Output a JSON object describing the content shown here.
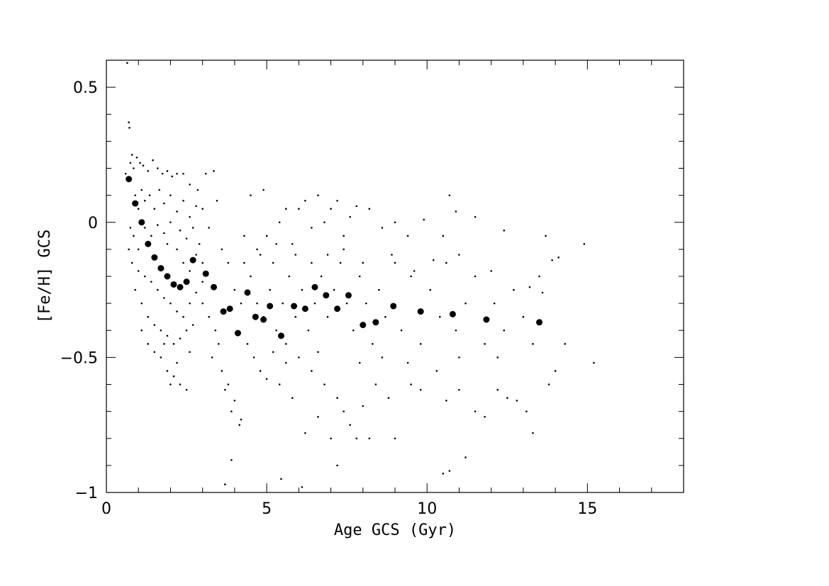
{
  "chart_data": {
    "type": "scatter",
    "xlabel": "Age GCS (Gyr)",
    "ylabel": "[Fe/H] GCS",
    "xlim": [
      0,
      18
    ],
    "ylim": [
      -1,
      0.6
    ],
    "x_ticks": [
      0,
      5,
      10,
      15
    ],
    "x_tick_labels": [
      "0",
      "5",
      "10",
      "15"
    ],
    "y_ticks": [
      -1,
      -0.5,
      0,
      0.5
    ],
    "y_tick_labels": [
      "−1",
      "−0.5",
      "0",
      "0.5"
    ],
    "grid": false,
    "legend": "none",
    "colors": {
      "points": "#000000",
      "axes": "#000000",
      "background": "#ffffff"
    },
    "series": [
      {
        "role": "binned-means",
        "points": [
          [
            0.7,
            0.16
          ],
          [
            0.9,
            0.07
          ],
          [
            1.1,
            0.0
          ],
          [
            1.3,
            -0.08
          ],
          [
            1.5,
            -0.13
          ],
          [
            1.7,
            -0.17
          ],
          [
            1.9,
            -0.2
          ],
          [
            2.1,
            -0.23
          ],
          [
            2.3,
            -0.24
          ],
          [
            2.5,
            -0.22
          ],
          [
            2.7,
            -0.14
          ],
          [
            3.1,
            -0.19
          ],
          [
            3.35,
            -0.24
          ],
          [
            3.65,
            -0.33
          ],
          [
            3.85,
            -0.32
          ],
          [
            4.1,
            -0.41
          ],
          [
            4.4,
            -0.26
          ],
          [
            4.65,
            -0.35
          ],
          [
            4.9,
            -0.36
          ],
          [
            5.1,
            -0.31
          ],
          [
            5.45,
            -0.42
          ],
          [
            5.85,
            -0.31
          ],
          [
            6.2,
            -0.32
          ],
          [
            6.5,
            -0.24
          ],
          [
            6.85,
            -0.27
          ],
          [
            7.2,
            -0.32
          ],
          [
            7.55,
            -0.27
          ],
          [
            8.0,
            -0.38
          ],
          [
            8.4,
            -0.37
          ],
          [
            8.95,
            -0.31
          ],
          [
            9.8,
            -0.33
          ],
          [
            10.8,
            -0.34
          ],
          [
            11.85,
            -0.36
          ],
          [
            13.5,
            -0.37
          ]
        ]
      },
      {
        "role": "individual-stars",
        "points": [
          [
            0.65,
            0.59
          ],
          [
            0.7,
            0.37
          ],
          [
            0.72,
            0.35
          ],
          [
            0.6,
            0.18
          ],
          [
            0.75,
            0.22
          ],
          [
            0.8,
            0.25
          ],
          [
            0.85,
            0.2
          ],
          [
            0.95,
            0.24
          ],
          [
            1.05,
            0.22
          ],
          [
            1.15,
            0.21
          ],
          [
            1.3,
            0.19
          ],
          [
            1.45,
            0.23
          ],
          [
            1.6,
            0.2
          ],
          [
            1.75,
            0.18
          ],
          [
            1.9,
            0.19
          ],
          [
            2.05,
            0.17
          ],
          [
            2.2,
            0.18
          ],
          [
            2.4,
            0.18
          ],
          [
            2.6,
            0.14
          ],
          [
            2.85,
            0.12
          ],
          [
            3.1,
            0.18
          ],
          [
            3.35,
            0.19
          ],
          [
            3.0,
            0.05
          ],
          [
            3.2,
            -0.02
          ],
          [
            0.9,
            0.1
          ],
          [
            1.0,
            0.05
          ],
          [
            1.1,
            0.12
          ],
          [
            1.2,
            0.08
          ],
          [
            1.35,
            0.1
          ],
          [
            1.5,
            0.05
          ],
          [
            1.65,
            0.12
          ],
          [
            1.8,
            0.07
          ],
          [
            2.0,
            0.1
          ],
          [
            2.2,
            0.04
          ],
          [
            2.4,
            0.08
          ],
          [
            2.6,
            0.02
          ],
          [
            2.8,
            0.06
          ],
          [
            0.75,
            -0.02
          ],
          [
            0.85,
            -0.05
          ],
          [
            1.0,
            -0.1
          ],
          [
            1.2,
            -0.02
          ],
          [
            1.4,
            -0.05
          ],
          [
            1.6,
            -0.01
          ],
          [
            1.8,
            -0.04
          ],
          [
            2.0,
            0.0
          ],
          [
            2.3,
            -0.03
          ],
          [
            2.5,
            -0.06
          ],
          [
            2.7,
            -0.02
          ],
          [
            2.9,
            -0.08
          ],
          [
            0.8,
            -0.15
          ],
          [
            1.0,
            -0.18
          ],
          [
            1.2,
            -0.2
          ],
          [
            1.4,
            -0.22
          ],
          [
            1.6,
            -0.25
          ],
          [
            1.8,
            -0.28
          ],
          [
            2.0,
            -0.3
          ],
          [
            2.2,
            -0.33
          ],
          [
            2.4,
            -0.35
          ],
          [
            2.6,
            -0.3
          ],
          [
            2.8,
            -0.26
          ],
          [
            3.0,
            -0.22
          ],
          [
            1.1,
            -0.3
          ],
          [
            1.3,
            -0.35
          ],
          [
            1.5,
            -0.38
          ],
          [
            1.7,
            -0.4
          ],
          [
            1.9,
            -0.42
          ],
          [
            2.1,
            -0.45
          ],
          [
            2.3,
            -0.43
          ],
          [
            2.5,
            -0.4
          ],
          [
            2.7,
            -0.38
          ],
          [
            1.5,
            -0.48
          ],
          [
            1.7,
            -0.5
          ],
          [
            1.9,
            -0.55
          ],
          [
            2.1,
            -0.57
          ],
          [
            2.3,
            -0.6
          ],
          [
            2.5,
            -0.62
          ],
          [
            2.0,
            -0.6
          ],
          [
            2.2,
            -0.52
          ],
          [
            1.8,
            -0.45
          ],
          [
            2.6,
            -0.48
          ],
          [
            3.0,
            -0.3
          ],
          [
            3.2,
            -0.35
          ],
          [
            3.4,
            -0.4
          ],
          [
            3.3,
            -0.5
          ],
          [
            3.5,
            -0.45
          ],
          [
            3.6,
            -0.55
          ],
          [
            3.7,
            -0.62
          ],
          [
            3.8,
            -0.6
          ],
          [
            3.9,
            -0.7
          ],
          [
            4.0,
            -0.66
          ],
          [
            4.15,
            -0.75
          ],
          [
            4.2,
            -0.73
          ],
          [
            3.7,
            -0.97
          ],
          [
            3.9,
            -0.88
          ],
          [
            3.45,
            0.08
          ],
          [
            3.6,
            -0.1
          ],
          [
            3.8,
            -0.15
          ],
          [
            4.0,
            -0.25
          ],
          [
            4.2,
            -0.3
          ],
          [
            4.3,
            -0.05
          ],
          [
            4.5,
            0.1
          ],
          [
            4.7,
            -0.1
          ],
          [
            4.9,
            0.12
          ],
          [
            5.0,
            -0.05
          ],
          [
            5.2,
            -0.15
          ],
          [
            5.4,
            0.0
          ],
          [
            5.6,
            0.05
          ],
          [
            5.8,
            -0.08
          ],
          [
            6.0,
            0.05
          ],
          [
            6.2,
            0.08
          ],
          [
            6.4,
            -0.02
          ],
          [
            6.6,
            0.1
          ],
          [
            6.8,
            0.0
          ],
          [
            7.0,
            0.05
          ],
          [
            7.2,
            0.08
          ],
          [
            7.4,
            -0.05
          ],
          [
            7.6,
            0.02
          ],
          [
            7.8,
            0.06
          ],
          [
            8.2,
            0.05
          ],
          [
            8.6,
            -0.02
          ],
          [
            9.0,
            0.0
          ],
          [
            9.4,
            -0.05
          ],
          [
            9.9,
            0.01
          ],
          [
            10.5,
            -0.05
          ],
          [
            10.7,
            0.1
          ],
          [
            10.9,
            0.04
          ],
          [
            11.5,
            0.02
          ],
          [
            12.4,
            -0.03
          ],
          [
            4.4,
            -0.45
          ],
          [
            4.6,
            -0.5
          ],
          [
            4.8,
            -0.55
          ],
          [
            5.0,
            -0.58
          ],
          [
            5.2,
            -0.48
          ],
          [
            5.4,
            -0.6
          ],
          [
            5.6,
            -0.52
          ],
          [
            5.8,
            -0.65
          ],
          [
            6.0,
            -0.5
          ],
          [
            6.2,
            -0.78
          ],
          [
            6.4,
            -0.55
          ],
          [
            6.6,
            -0.72
          ],
          [
            6.8,
            -0.6
          ],
          [
            7.0,
            -0.8
          ],
          [
            7.2,
            -0.65
          ],
          [
            7.4,
            -0.7
          ],
          [
            7.6,
            -0.75
          ],
          [
            7.8,
            -0.8
          ],
          [
            8.0,
            -0.68
          ],
          [
            8.2,
            -0.8
          ],
          [
            8.4,
            -0.6
          ],
          [
            8.8,
            -0.65
          ],
          [
            9.0,
            -0.8
          ],
          [
            9.5,
            -0.6
          ],
          [
            9.8,
            -0.62
          ],
          [
            10.3,
            -0.55
          ],
          [
            10.6,
            -0.66
          ],
          [
            11.0,
            -0.62
          ],
          [
            11.5,
            -0.7
          ],
          [
            11.8,
            -0.72
          ],
          [
            12.2,
            -0.62
          ],
          [
            12.5,
            -0.65
          ],
          [
            12.8,
            -0.66
          ],
          [
            13.1,
            -0.7
          ],
          [
            13.3,
            -0.78
          ],
          [
            13.8,
            -0.6
          ],
          [
            14.0,
            -0.55
          ],
          [
            14.3,
            -0.45
          ],
          [
            15.2,
            -0.52
          ],
          [
            14.9,
            -0.08
          ],
          [
            13.7,
            -0.05
          ],
          [
            13.9,
            -0.14
          ],
          [
            14.1,
            -0.13
          ],
          [
            5.45,
            -0.95
          ],
          [
            6.1,
            -0.98
          ],
          [
            7.2,
            -0.9
          ],
          [
            10.5,
            -0.93
          ],
          [
            10.7,
            -0.92
          ],
          [
            11.2,
            -0.87
          ],
          [
            4.5,
            -0.2
          ],
          [
            4.7,
            -0.3
          ],
          [
            4.9,
            -0.35
          ],
          [
            5.1,
            -0.25
          ],
          [
            5.3,
            -0.4
          ],
          [
            5.5,
            -0.3
          ],
          [
            5.7,
            -0.2
          ],
          [
            5.9,
            -0.35
          ],
          [
            6.1,
            -0.25
          ],
          [
            6.3,
            -0.4
          ],
          [
            6.5,
            -0.3
          ],
          [
            6.7,
            -0.2
          ],
          [
            6.9,
            -0.35
          ],
          [
            7.1,
            -0.25
          ],
          [
            7.3,
            -0.15
          ],
          [
            7.5,
            -0.3
          ],
          [
            7.7,
            -0.4
          ],
          [
            7.9,
            -0.2
          ],
          [
            8.1,
            -0.3
          ],
          [
            8.3,
            -0.45
          ],
          [
            8.5,
            -0.25
          ],
          [
            8.7,
            -0.35
          ],
          [
            9.0,
            -0.15
          ],
          [
            9.2,
            -0.4
          ],
          [
            9.5,
            -0.2
          ],
          [
            9.8,
            -0.45
          ],
          [
            10.1,
            -0.25
          ],
          [
            10.4,
            -0.35
          ],
          [
            10.6,
            -0.15
          ],
          [
            10.9,
            -0.4
          ],
          [
            11.2,
            -0.3
          ],
          [
            11.5,
            -0.2
          ],
          [
            11.8,
            -0.45
          ],
          [
            12.1,
            -0.3
          ],
          [
            12.4,
            -0.4
          ],
          [
            12.7,
            -0.25
          ],
          [
            13.0,
            -0.35
          ],
          [
            13.2,
            -0.24
          ],
          [
            13.6,
            -0.26
          ],
          [
            13.3,
            -0.45
          ],
          [
            12.2,
            -0.5
          ],
          [
            11.0,
            -0.5
          ],
          [
            9.4,
            -0.52
          ],
          [
            8.6,
            -0.5
          ],
          [
            7.9,
            -0.52
          ],
          [
            6.6,
            -0.48
          ],
          [
            5.6,
            -0.45
          ],
          [
            4.3,
            -0.15
          ],
          [
            4.8,
            -0.12
          ],
          [
            5.3,
            -0.08
          ],
          [
            5.9,
            -0.12
          ],
          [
            6.4,
            -0.15
          ],
          [
            6.9,
            -0.12
          ],
          [
            7.4,
            -0.1
          ],
          [
            8.0,
            -0.15
          ],
          [
            8.9,
            -0.12
          ],
          [
            9.6,
            -0.18
          ],
          [
            10.2,
            -0.14
          ],
          [
            11.0,
            -0.12
          ],
          [
            12.0,
            -0.18
          ],
          [
            13.5,
            -0.2
          ],
          [
            1.3,
            -0.45
          ],
          [
            1.1,
            -0.4
          ],
          [
            0.9,
            -0.25
          ],
          [
            0.7,
            -0.1
          ],
          [
            2.2,
            -0.1
          ],
          [
            2.4,
            -0.15
          ],
          [
            2.6,
            -0.18
          ],
          [
            2.8,
            -0.12
          ],
          [
            3.0,
            -0.15
          ],
          [
            1.9,
            -0.08
          ]
        ]
      }
    ]
  }
}
